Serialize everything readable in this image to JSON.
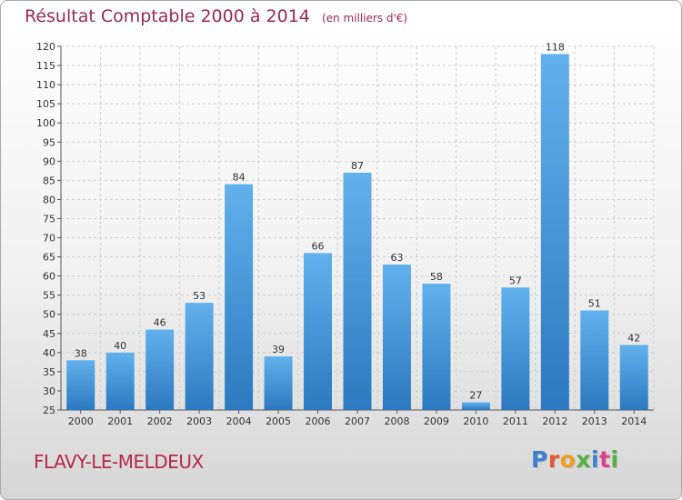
{
  "title": "Résultat Comptable 2000 à 2014",
  "subtitle": "(en milliers d'€)",
  "commune": "FLAVY-LE-MELDEUX",
  "logo": {
    "letters": [
      "P",
      "r",
      "o",
      "x",
      "i",
      "t",
      "i"
    ],
    "colors": [
      "#3f7fcf",
      "#e8562c",
      "#f0a020",
      "#57b140",
      "#3f7fcf",
      "#d9448c",
      "#57b140"
    ]
  },
  "colors": {
    "bar_top": "#62b1ec",
    "bar_bottom": "#2c79bf",
    "title": "#9a2a4e"
  },
  "chart_data": {
    "type": "bar",
    "title": "Résultat Comptable 2000 à 2014",
    "subtitle": "(en milliers d'€)",
    "categories": [
      "2000",
      "2001",
      "2002",
      "2003",
      "2004",
      "2005",
      "2006",
      "2007",
      "2008",
      "2009",
      "2010",
      "2011",
      "2012",
      "2013",
      "2014"
    ],
    "values": [
      38,
      40,
      46,
      53,
      84,
      39,
      66,
      87,
      63,
      58,
      27,
      57,
      118,
      51,
      42
    ],
    "ylim": [
      25,
      120
    ],
    "yticks": [
      25,
      30,
      35,
      40,
      45,
      50,
      55,
      60,
      65,
      70,
      75,
      80,
      85,
      90,
      95,
      100,
      105,
      110,
      115,
      120
    ],
    "grid": true,
    "data_labels": true
  }
}
